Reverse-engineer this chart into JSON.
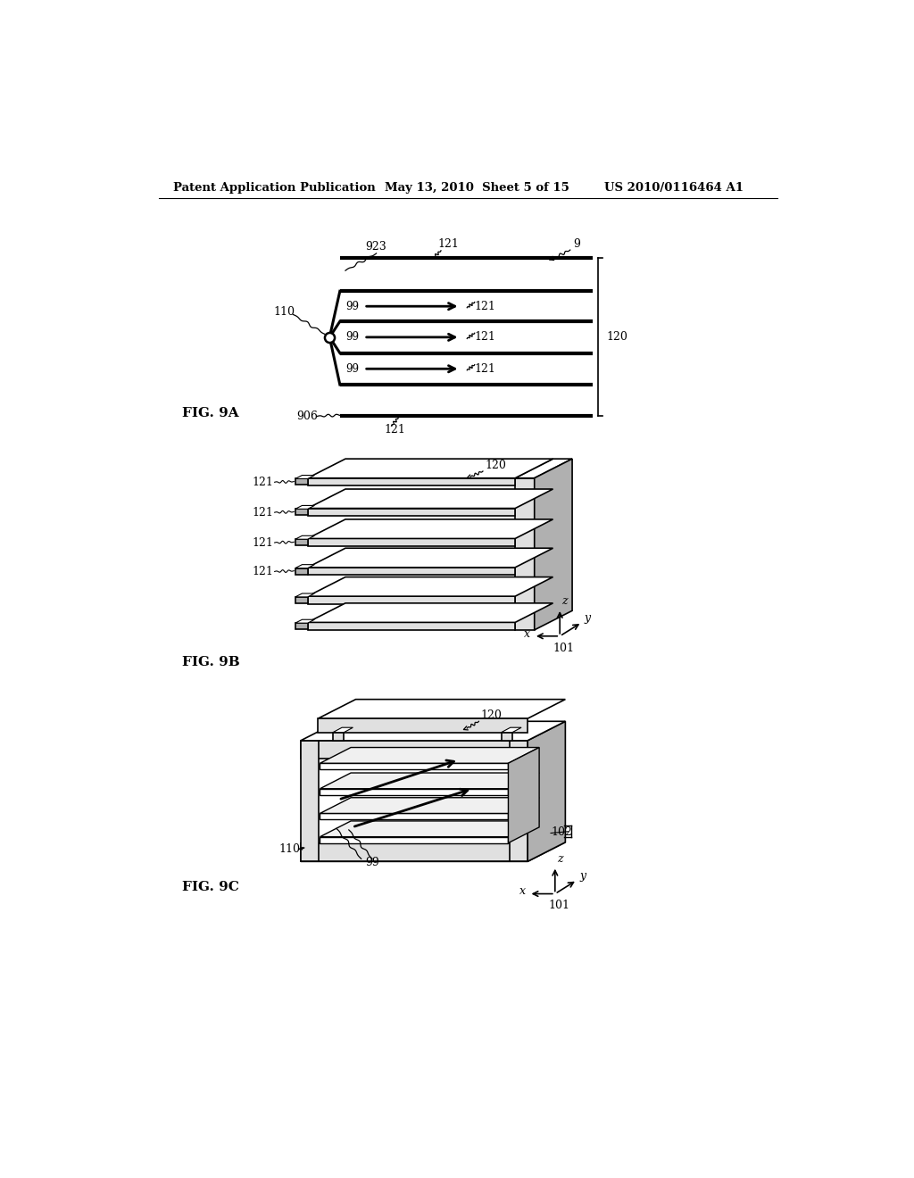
{
  "header_left": "Patent Application Publication",
  "header_mid": "May 13, 2010  Sheet 5 of 15",
  "header_right": "US 2010/0116464 A1",
  "bg_color": "#ffffff",
  "text_color": "#000000",
  "line_color": "#000000",
  "gray_fill": "#c8c8c8",
  "light_gray": "#e0e0e0",
  "mid_gray": "#b0b0b0",
  "dark_gray": "#909090",
  "fig9a_label": "FIG. 9A",
  "fig9b_label": "FIG. 9B",
  "fig9c_label": "FIG. 9C"
}
